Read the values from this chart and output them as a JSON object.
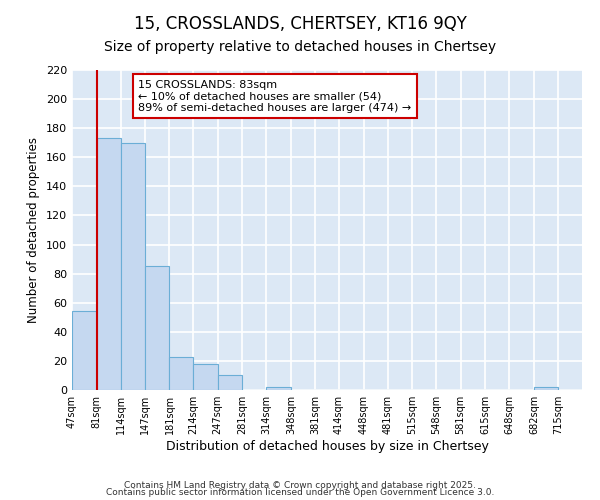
{
  "title": "15, CROSSLANDS, CHERTSEY, KT16 9QY",
  "subtitle": "Size of property relative to detached houses in Chertsey",
  "xlabel": "Distribution of detached houses by size in Chertsey",
  "ylabel": "Number of detached properties",
  "bins": [
    47,
    81,
    114,
    147,
    181,
    214,
    247,
    281,
    314,
    348,
    381,
    414,
    448,
    481,
    515,
    548,
    581,
    615,
    648,
    682,
    715
  ],
  "values": [
    54,
    173,
    170,
    85,
    23,
    18,
    10,
    0,
    2,
    0,
    0,
    0,
    0,
    0,
    0,
    0,
    0,
    0,
    0,
    2,
    0
  ],
  "bar_color": "#c5d8f0",
  "bar_edge_color": "#6baed6",
  "bar_edge_width": 0.8,
  "vline_x": 81,
  "vline_color": "#cc0000",
  "annotation_text": "15 CROSSLANDS: 83sqm\n← 10% of detached houses are smaller (54)\n89% of semi-detached houses are larger (474) →",
  "annotation_box_color": "white",
  "annotation_box_edge_color": "#cc0000",
  "ylim": [
    0,
    220
  ],
  "yticks": [
    0,
    20,
    40,
    60,
    80,
    100,
    120,
    140,
    160,
    180,
    200,
    220
  ],
  "plot_bg_color": "#dce8f5",
  "fig_bg_color": "#ffffff",
  "grid_color": "#ffffff",
  "footer_line1": "Contains HM Land Registry data © Crown copyright and database right 2025.",
  "footer_line2": "Contains public sector information licensed under the Open Government Licence 3.0.",
  "title_fontsize": 12,
  "subtitle_fontsize": 10,
  "tick_label_fontsize": 7,
  "ylabel_fontsize": 8.5,
  "xlabel_fontsize": 9,
  "footer_fontsize": 6.5
}
